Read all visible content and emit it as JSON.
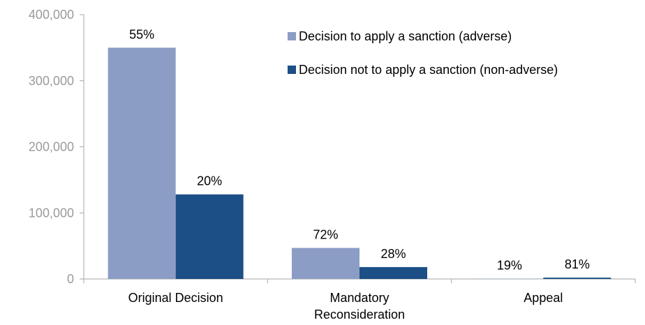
{
  "chart_data": {
    "type": "bar",
    "categories": [
      "Original Decision",
      "Mandatory Reconsideration",
      "Appeal"
    ],
    "category_lines": [
      [
        "Original Decision"
      ],
      [
        "Mandatory",
        "Reconsideration"
      ],
      [
        "Appeal"
      ]
    ],
    "series": [
      {
        "name": "Decision to apply a sanction (adverse)",
        "color": "#8c9dc5",
        "values": [
          350000,
          47000,
          500
        ],
        "labels": [
          "55%",
          "72%",
          "19%"
        ]
      },
      {
        "name": "Decision not to apply a sanction (non-adverse)",
        "color": "#1b4f86",
        "values": [
          128000,
          18000,
          2000
        ],
        "labels": [
          "20%",
          "28%",
          "81%"
        ]
      }
    ],
    "ylim": [
      0,
      400000
    ],
    "yticks": [
      0,
      100000,
      200000,
      300000,
      400000
    ],
    "ytick_labels": [
      "0",
      "100,000",
      "200,000",
      "300,000",
      "400,000"
    ],
    "legend_position": "top-right",
    "grid": false
  }
}
